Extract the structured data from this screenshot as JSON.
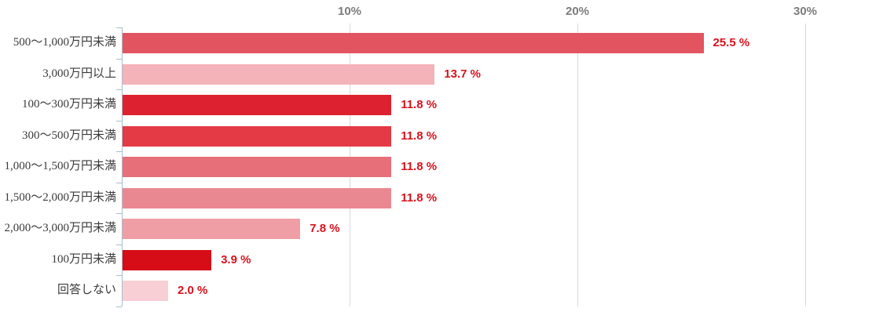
{
  "chart_data": {
    "type": "bar",
    "orientation": "horizontal",
    "title": "",
    "xlabel": "",
    "ylabel": "",
    "categories": [
      "500〜1,000万円未満",
      "3,000万円以上",
      "100〜300万円未満",
      "300〜500万円未満",
      "1,000〜1,500万円未満",
      "1,500〜2,000万円未満",
      "2,000〜3,000万円未満",
      "100万円未満",
      "回答しない"
    ],
    "values": [
      25.5,
      13.7,
      11.8,
      11.8,
      11.8,
      11.8,
      7.8,
      3.9,
      2.0
    ],
    "value_labels": [
      "25.5 %",
      "13.7 %",
      "11.8 %",
      "11.8 %",
      "11.8 %",
      "11.8 %",
      "7.8 %",
      "3.9 %",
      "2.0 %"
    ],
    "bar_colors": [
      "#e25460",
      "#f4b2b9",
      "#de2130",
      "#e33a46",
      "#e76f7a",
      "#ea8892",
      "#f09ea6",
      "#d60d16",
      "#f7cfd5"
    ],
    "x_ticks": [
      {
        "label": "10%",
        "value": 10
      },
      {
        "label": "20%",
        "value": 20
      },
      {
        "label": "30%",
        "value": 30
      }
    ],
    "xlim": [
      0,
      33.4
    ],
    "grid": "vertical-only",
    "legend": "none",
    "colors": {
      "value_label": "#d8121d",
      "gridline": "#d8d8d8",
      "axis_line": "#a9bdc9",
      "x_tick_label": "#7c7c7c",
      "category_label": "#3b3b3b"
    }
  }
}
